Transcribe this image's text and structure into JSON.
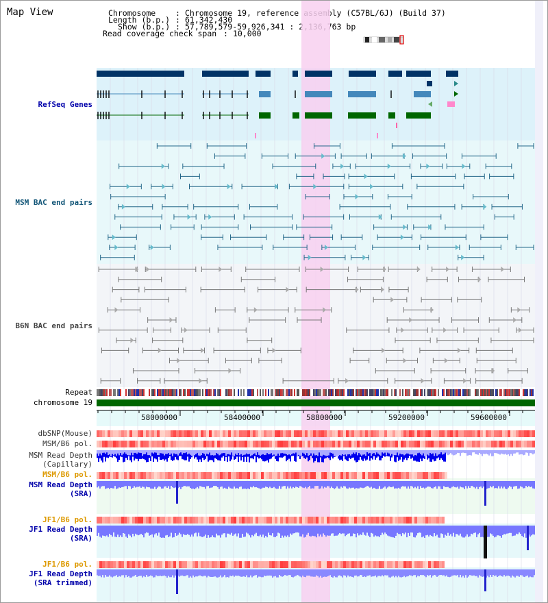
{
  "view": {
    "title": "Map View",
    "chromosome_key": "Chromosome",
    "chromosome_value": "Chromosome 19, reference assembly (C57BL/6J) (Build 37)",
    "length_key": "Length (b.p.)",
    "length_value": "61,342,430",
    "show_key": "Show (b.p.)",
    "show_value": "57,789,579-59,926,341 : 2,136,763 bp",
    "coverage_key": "Read coverage check span",
    "coverage_value": "10,000"
  },
  "tracks": {
    "refseq": "RefSeq Genes",
    "msm_bac": "MSM BAC end pairs",
    "b6n_bac": "B6N BAC end pairs",
    "repeat": "Repeat",
    "chromosome": "chromosome 19",
    "dbsnp": "dbSNP(Mouse)",
    "msm_b6_pol_1": "MSM/B6 pol.",
    "msm_depth_cap_1": "MSM Read Depth",
    "msm_depth_cap_2": "(Capillary)",
    "msm_b6_pol_2": "MSM/B6 pol.",
    "msm_depth_sra_1": "MSM Read Depth",
    "msm_depth_sra_2": "(SRA)",
    "jf1_b6_pol_1": "JF1/B6 pol.",
    "jf1_depth_sra_1": "JF1 Read Depth",
    "jf1_depth_sra_2": "(SRA)",
    "jf1_b6_pol_2": "JF1/B6 pol.",
    "jf1_depth_trim_1": "JF1 Read Depth",
    "jf1_depth_trim_2": "(SRA trimmed)"
  },
  "axis": {
    "ticks": [
      "58000000",
      "58400000",
      "58800000",
      "59200000",
      "59600000"
    ]
  },
  "colors": {
    "refseq_dark": "#003366",
    "refseq_mid": "#4488bb",
    "refseq_green": "#006600",
    "msm_line": "#226688",
    "b6n_line": "#777777",
    "highlight": "#f8d0f0",
    "chromosome_bar": "#006600",
    "depth_blue": "#0000ee",
    "depth_light": "#7777ff",
    "label_blue": "#0000aa",
    "label_orange": "#dd9900",
    "label_teal": "#115577"
  }
}
